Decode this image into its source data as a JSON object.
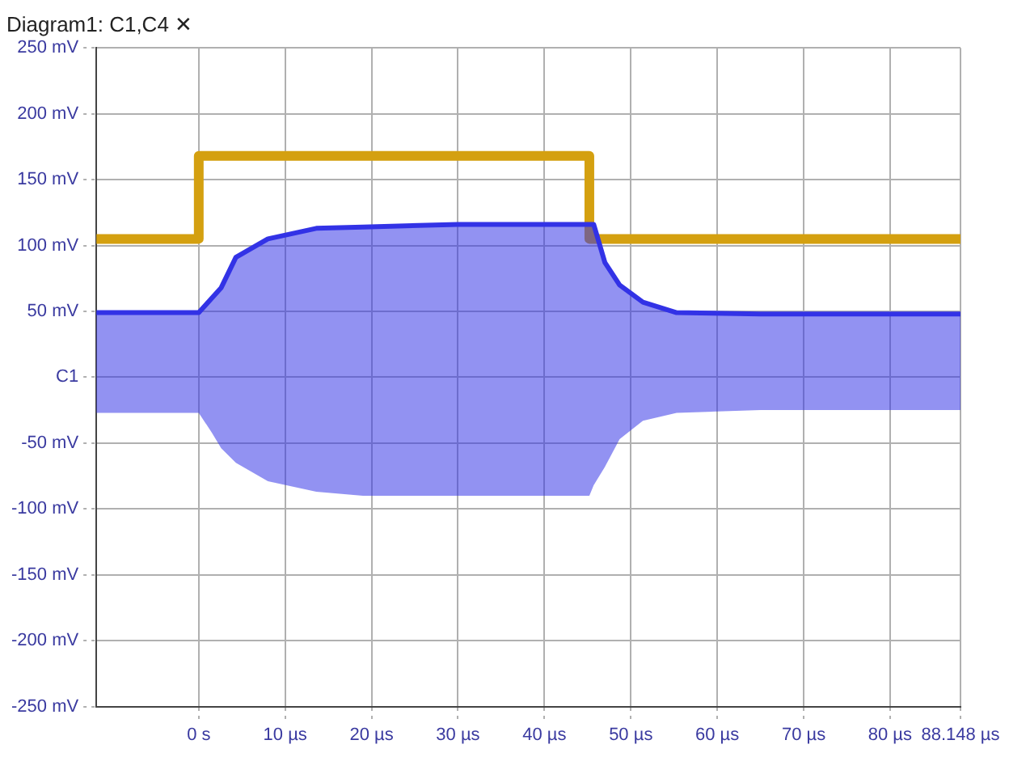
{
  "chart_data": {
    "type": "line",
    "title": "Diagram1: C1,C4 ✕",
    "xlim": [
      -11.852,
      88.148
    ],
    "xticks": [
      {
        "value": 0,
        "label": "0 s"
      },
      {
        "value": 10,
        "label": "10 µs"
      },
      {
        "value": 20,
        "label": "20 µs"
      },
      {
        "value": 30,
        "label": "30 µs"
      },
      {
        "value": 40,
        "label": "40 µs"
      },
      {
        "value": 50,
        "label": "50 µs"
      },
      {
        "value": 60,
        "label": "60 µs"
      },
      {
        "value": 70,
        "label": "70 µs"
      },
      {
        "value": 80,
        "label": "80 µs"
      },
      {
        "value": 88.148,
        "label": "88.148 µs"
      }
    ],
    "ylim": [
      -250,
      250
    ],
    "yticks": [
      {
        "value": -250,
        "label": "-250 mV"
      },
      {
        "value": -200,
        "label": "-200 mV"
      },
      {
        "value": -150,
        "label": "-150 mV"
      },
      {
        "value": -100,
        "label": "-100 mV"
      },
      {
        "value": -50,
        "label": "-50 mV"
      },
      {
        "value": 0,
        "label": "C1"
      },
      {
        "value": 50,
        "label": "50 mV"
      },
      {
        "value": 100,
        "label": "100 mV"
      },
      {
        "value": 150,
        "label": "150 mV"
      },
      {
        "value": 200,
        "label": "200 mV"
      },
      {
        "value": 250,
        "label": "250 mV"
      }
    ],
    "grid": true,
    "legend": false,
    "marker": "none",
    "line_style": "solid",
    "series": [
      {
        "color": "#3333e6",
        "x": [
          -11.852,
          0,
          1.5,
          2.6,
          4.3,
          8,
          13.6,
          19,
          30,
          40,
          45.2,
          45.7,
          47,
          48.7,
          51.4,
          55.3,
          65,
          88.148
        ],
        "values": [
          49,
          49,
          60,
          68,
          91,
          105,
          113,
          114,
          116,
          116,
          116,
          116,
          87,
          70,
          57,
          49,
          48,
          48
        ],
        "upper": [
          49,
          49,
          60,
          68,
          91,
          105,
          113,
          114,
          116,
          116,
          116,
          116,
          87,
          70,
          57,
          49,
          48,
          48
        ],
        "lower": [
          -27,
          -27,
          -42,
          -54,
          -65,
          -79,
          -87,
          -90,
          -90,
          -90,
          -90,
          -82,
          -68,
          -47,
          -33,
          -27,
          -25,
          -25
        ]
      },
      {
        "type": "step",
        "color": "#d4a010",
        "x": [
          -11.852,
          0,
          45.2,
          88.148
        ],
        "values": [
          105,
          168,
          105,
          105
        ]
      }
    ]
  }
}
